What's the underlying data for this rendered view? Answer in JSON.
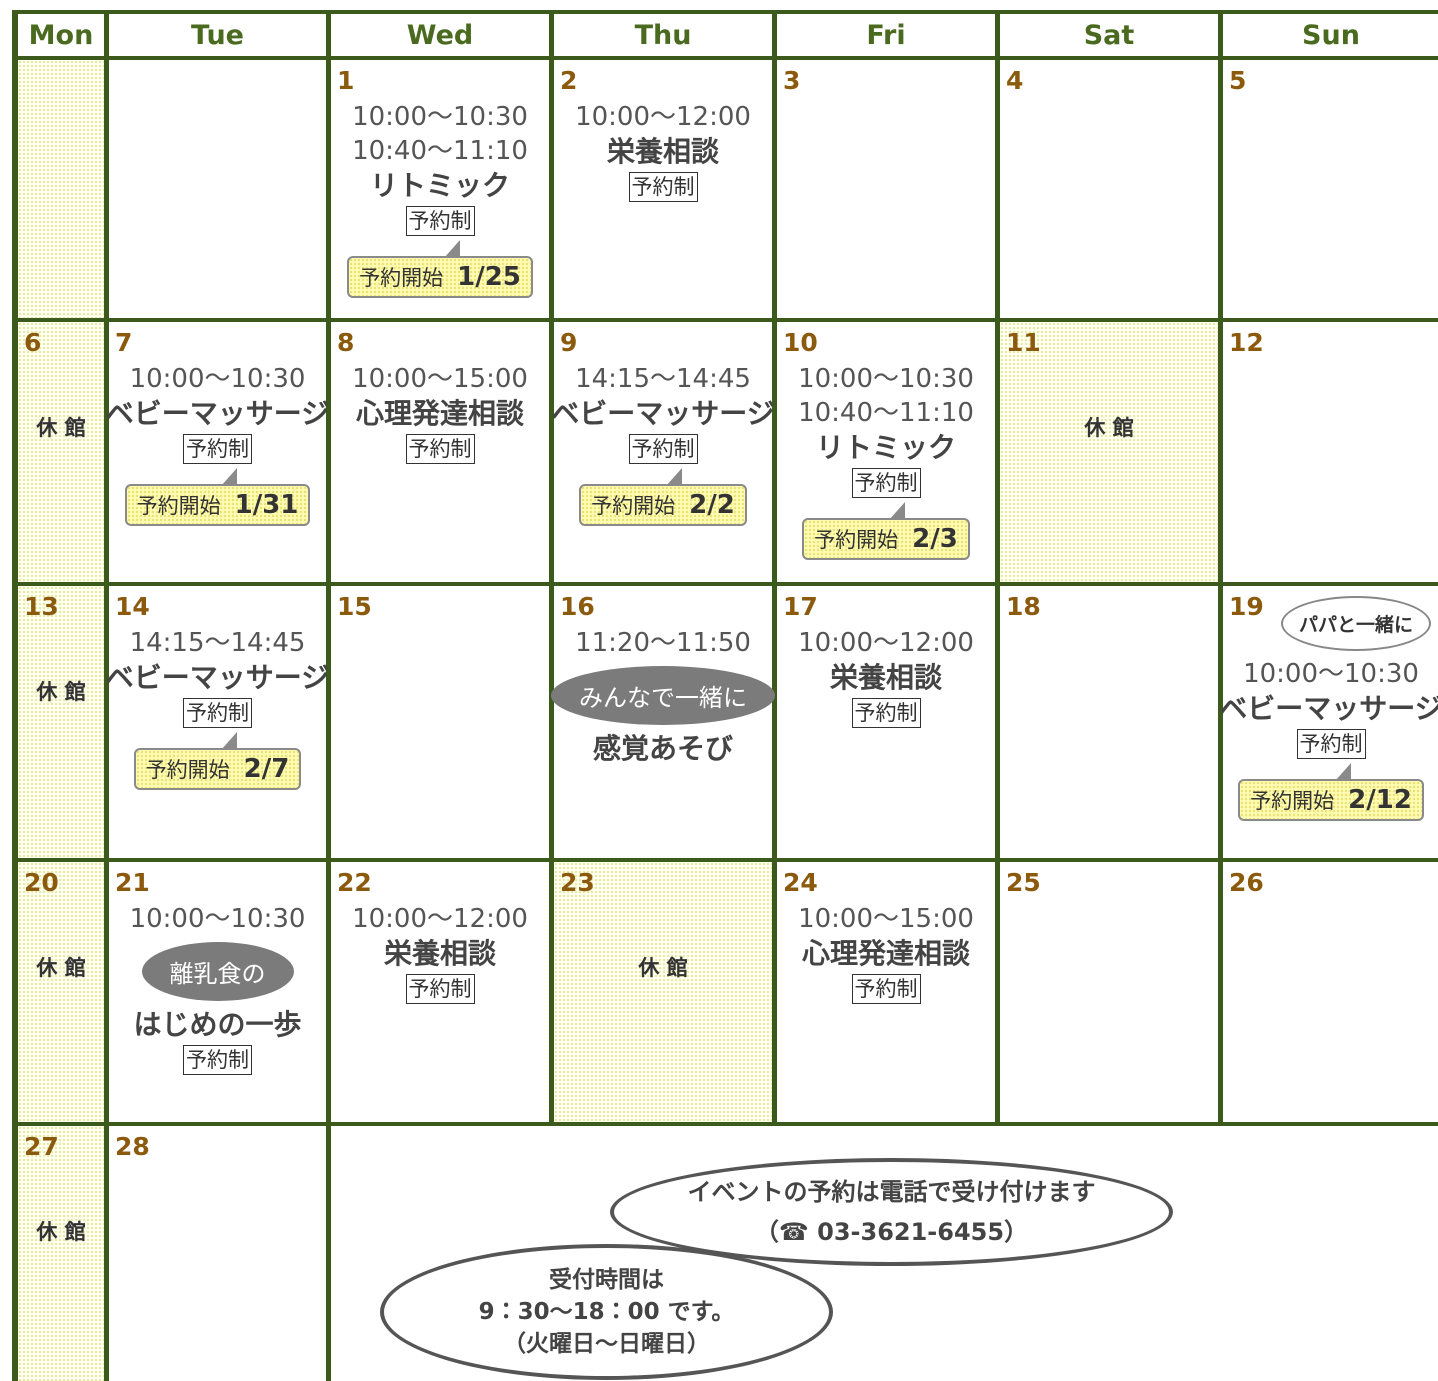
{
  "header": {
    "days": [
      "Mon",
      "Tue",
      "Wed",
      "Thu",
      "Fri",
      "Sat",
      "Sun"
    ]
  },
  "weeks": [
    [
      {},
      {},
      {
        "date": "1",
        "times": [
          "10:00～10:30",
          "10:40～11:10"
        ],
        "event": "リトミック",
        "badge": "予約制",
        "start": {
          "label": "予約開始",
          "date": "1/25"
        }
      },
      {
        "date": "2",
        "times": [
          "10:00～12:00"
        ],
        "event": "栄養相談",
        "badge": "予約制"
      },
      {
        "date": "3"
      },
      {
        "date": "4"
      },
      {
        "date": "5"
      }
    ],
    [
      {
        "date": "6",
        "closed": "休 館"
      },
      {
        "date": "7",
        "times": [
          "10:00～10:30"
        ],
        "event": "ベビーマッサージ",
        "badge": "予約制",
        "start": {
          "label": "予約開始",
          "date": "1/31"
        }
      },
      {
        "date": "8",
        "times": [
          "10:00～15:00"
        ],
        "event": "心理発達相談",
        "badge": "予約制"
      },
      {
        "date": "9",
        "times": [
          "14:15～14:45"
        ],
        "event": "ベビーマッサージ",
        "badge": "予約制",
        "start": {
          "label": "予約開始",
          "date": "2/2"
        }
      },
      {
        "date": "10",
        "times": [
          "10:00～10:30",
          "10:40～11:10"
        ],
        "event": "リトミック",
        "badge": "予約制",
        "start": {
          "label": "予約開始",
          "date": "2/3"
        }
      },
      {
        "date": "11",
        "closed": "休 館"
      },
      {
        "date": "12"
      }
    ],
    [
      {
        "date": "13",
        "closed": "休 館"
      },
      {
        "date": "14",
        "times": [
          "14:15～14:45"
        ],
        "event": "ベビーマッサージ",
        "badge": "予約制",
        "start": {
          "label": "予約開始",
          "date": "2/7"
        }
      },
      {
        "date": "15"
      },
      {
        "date": "16",
        "times": [
          "11:20～11:50"
        ],
        "bubble": "みんなで一緒に",
        "event": "感覚あそび"
      },
      {
        "date": "17",
        "times": [
          "10:00～12:00"
        ],
        "event": "栄養相談",
        "badge": "予約制"
      },
      {
        "date": "18"
      },
      {
        "date": "19",
        "note": "パパと一緒に",
        "times": [
          "10:00～10:30"
        ],
        "event": "ベビーマッサージ",
        "badge": "予約制",
        "start": {
          "label": "予約開始",
          "date": "2/12"
        }
      }
    ],
    [
      {
        "date": "20",
        "closed": "休 館"
      },
      {
        "date": "21",
        "times": [
          "10:00～10:30"
        ],
        "bubble": "離乳食の",
        "event": "はじめの一歩",
        "badge": "予約制"
      },
      {
        "date": "22",
        "times": [
          "10:00～12:00"
        ],
        "event": "栄養相談",
        "badge": "予約制"
      },
      {
        "date": "23",
        "closed": "休 館"
      },
      {
        "date": "24",
        "times": [
          "10:00～15:00"
        ],
        "event": "心理発達相談",
        "badge": "予約制"
      },
      {
        "date": "25"
      },
      {
        "date": "26"
      }
    ],
    [
      {
        "date": "27",
        "closed": "休 館"
      },
      {
        "date": "28"
      }
    ]
  ],
  "notice": {
    "reservation": [
      "イベントの予約は電話で受け付けます",
      "（☎ 03-3621-6455）"
    ],
    "hours": [
      "受付時間は",
      "9：30～18：00 です。",
      "（火曜日～日曜日）"
    ]
  }
}
